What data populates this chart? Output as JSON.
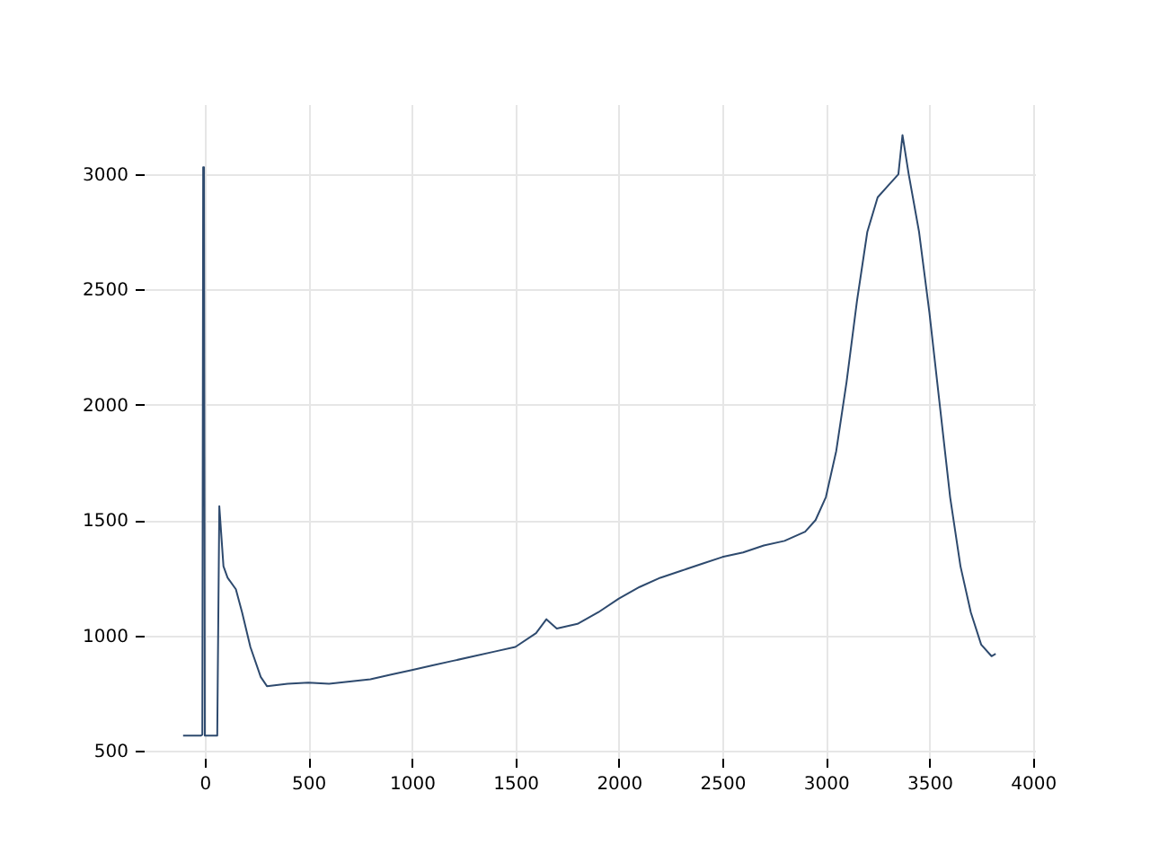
{
  "chart_data": {
    "type": "line",
    "x": [
      -105,
      -20,
      -12,
      -8,
      -4,
      0,
      45,
      60,
      70,
      90,
      110,
      150,
      180,
      220,
      270,
      300,
      400,
      500,
      600,
      700,
      800,
      900,
      1000,
      1100,
      1200,
      1300,
      1400,
      1500,
      1600,
      1650,
      1700,
      1800,
      1900,
      2000,
      2100,
      2200,
      2300,
      2400,
      2500,
      2600,
      2700,
      2800,
      2900,
      2950,
      3000,
      3050,
      3100,
      3150,
      3200,
      3250,
      3300,
      3350,
      3370,
      3400,
      3450,
      3500,
      3550,
      3600,
      3650,
      3700,
      3750,
      3800,
      3820
    ],
    "series": [
      {
        "color": "#2e4a6e",
        "values": [
          565,
          565,
          570,
          3030,
          3030,
          565,
          565,
          565,
          1560,
          1300,
          1250,
          1200,
          1100,
          950,
          820,
          780,
          790,
          795,
          790,
          800,
          810,
          830,
          850,
          870,
          890,
          910,
          930,
          950,
          1010,
          1070,
          1030,
          1050,
          1100,
          1160,
          1210,
          1250,
          1280,
          1310,
          1340,
          1360,
          1390,
          1410,
          1450,
          1500,
          1600,
          1800,
          2100,
          2450,
          2750,
          2900,
          2950,
          3000,
          3170,
          3000,
          2750,
          2400,
          2000,
          1600,
          1300,
          1100,
          960,
          910,
          920
        ]
      }
    ],
    "xlim": [
      -295,
      4010
    ],
    "ylim": [
      469,
      3304
    ],
    "xticks": [
      0,
      500,
      1000,
      1500,
      2000,
      2500,
      3000,
      3500,
      4000
    ],
    "yticks": [
      500,
      1000,
      1500,
      2000,
      2500,
      3000
    ],
    "grid": true,
    "line_style": "solid",
    "marker": "none"
  }
}
